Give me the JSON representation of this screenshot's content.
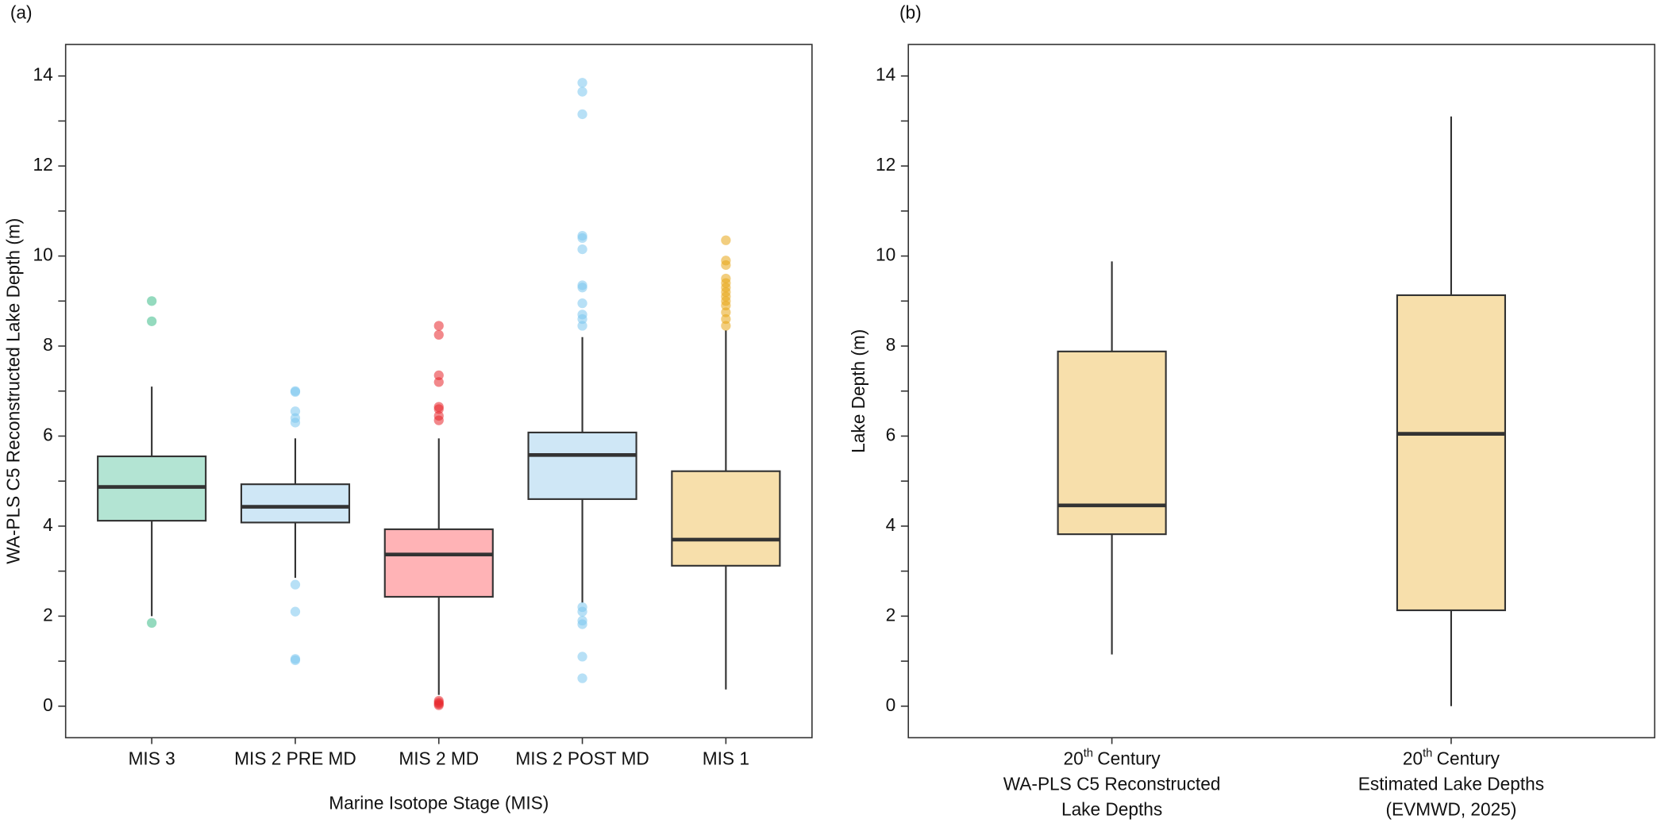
{
  "chart_data": [
    {
      "type": "box",
      "panel_label": "(a)",
      "y_label": "WA-PLS C5 Reconstructed Lake Depth (m)",
      "x_label": "Marine Isotope Stage (MIS)",
      "categories": [
        "MIS 3",
        "MIS 2 PRE MD",
        "MIS 2 MD",
        "MIS 2 POST MD",
        "MIS 1"
      ],
      "ylim": [
        -0.7,
        14.7
      ],
      "yticks": [
        0,
        2,
        4,
        6,
        8,
        10,
        12,
        14
      ],
      "yminor": [
        1,
        3,
        5,
        7,
        9,
        11,
        13
      ],
      "boxes": [
        {
          "whisker_low": 2.0,
          "q1": 4.12,
          "median": 4.87,
          "q3": 5.55,
          "whisker_high": 7.1,
          "outliers": [
            1.85,
            8.55,
            9.0
          ],
          "color": "#b3e4d3",
          "outlier_color": "#3dbb88"
        },
        {
          "whisker_low": 2.85,
          "q1": 4.08,
          "median": 4.43,
          "q3": 4.93,
          "whisker_high": 5.95,
          "outliers": [
            6.3,
            6.4,
            6.55,
            6.98,
            7.0,
            2.7,
            2.1,
            1.05,
            1.02
          ],
          "color": "#cfe7f6",
          "outlier_color": "#7cc6ef"
        },
        {
          "whisker_low": 0.25,
          "q1": 2.43,
          "median": 3.37,
          "q3": 3.93,
          "whisker_high": 5.95,
          "outliers": [
            6.35,
            6.45,
            6.6,
            6.65,
            7.2,
            7.35,
            8.25,
            8.45,
            0.02,
            0.05,
            0.08,
            0.12
          ],
          "color": "#ffb3b6",
          "outlier_color": "#e8262b"
        },
        {
          "whisker_low": 2.3,
          "q1": 4.6,
          "median": 5.58,
          "q3": 6.08,
          "whisker_high": 8.2,
          "outliers": [
            8.45,
            8.6,
            8.7,
            8.95,
            9.3,
            9.35,
            10.15,
            10.4,
            10.45,
            13.15,
            13.65,
            13.85,
            2.2,
            2.1,
            1.9,
            1.82,
            1.1,
            0.62
          ],
          "color": "#cfe7f6",
          "outlier_color": "#7cc6ef"
        },
        {
          "whisker_low": 0.37,
          "q1": 3.12,
          "median": 3.7,
          "q3": 5.22,
          "whisker_high": 8.35,
          "outliers": [
            8.45,
            8.6,
            8.75,
            8.9,
            9.0,
            9.1,
            9.2,
            9.3,
            9.4,
            9.5,
            9.8,
            9.9,
            10.35
          ],
          "color": "#f7dfab",
          "outlier_color": "#e8a616"
        }
      ]
    },
    {
      "type": "box",
      "panel_label": "(b)",
      "y_label": "Lake Depth (m)",
      "categories": [
        {
          "number": "20",
          "superscript": "th",
          "first_line": "Century",
          "lines": [
            "WA-PLS C5 Reconstructed",
            "Lake Depths"
          ]
        },
        {
          "number": "20",
          "superscript": "th",
          "first_line": "Century",
          "lines": [
            "Estimated Lake Depths",
            "(EVMWD, 2025)"
          ]
        }
      ],
      "ylim": [
        -0.7,
        14.7
      ],
      "yticks": [
        0,
        2,
        4,
        6,
        8,
        10,
        12,
        14
      ],
      "yminor": [
        1,
        3,
        5,
        7,
        9,
        11,
        13
      ],
      "boxes": [
        {
          "whisker_low": 1.15,
          "q1": 3.82,
          "median": 4.46,
          "q3": 7.88,
          "whisker_high": 9.88,
          "outliers": [],
          "color": "#f7dfab",
          "outlier_color": "#e8a616"
        },
        {
          "whisker_low": 0,
          "q1": 2.13,
          "median": 6.05,
          "q3": 9.13,
          "whisker_high": 13.1,
          "outliers": [],
          "color": "#f7dfab",
          "outlier_color": "#e8a616"
        }
      ]
    }
  ]
}
